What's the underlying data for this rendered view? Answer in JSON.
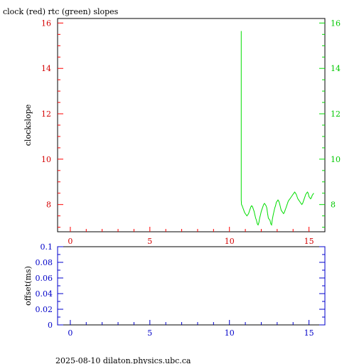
{
  "footer_text": "2025-08-10  dilaton.physics.ubc.ca",
  "colors": {
    "clock": "#ff0000",
    "rtc": "#00dd00",
    "offset_axis": "#0000cc",
    "frame": "#000000"
  },
  "chart_data": [
    {
      "type": "line",
      "title": "clock (red) rtc (green) slopes",
      "ylabel": "clockslope",
      "xlim": [
        -0.8,
        16.0
      ],
      "ylim": [
        6.8,
        16.2
      ],
      "x_ticks": [
        0,
        5,
        10,
        15
      ],
      "x_minor_ticks": [
        1,
        2,
        3,
        4,
        6,
        7,
        8,
        9,
        11,
        12,
        13,
        14
      ],
      "y_ticks_left": [
        8,
        10,
        12,
        14,
        16
      ],
      "y_ticks_right": [
        8,
        10,
        12,
        14,
        16
      ],
      "grid": false,
      "series": [
        {
          "x": [
            10.74,
            10.74,
            10.76,
            10.8,
            10.85,
            10.9,
            10.95,
            11.0,
            11.05,
            11.1,
            11.15,
            11.2,
            11.25,
            11.3,
            11.35,
            11.4,
            11.45,
            11.5,
            11.55,
            11.6,
            11.65,
            11.7,
            11.75,
            11.8,
            11.85,
            11.9,
            11.95,
            12.0,
            12.05,
            12.1,
            12.15,
            12.2,
            12.25,
            12.3,
            12.35,
            12.4,
            12.45,
            12.5,
            12.55,
            12.6,
            12.65,
            12.7,
            12.75,
            12.8,
            12.85,
            12.9,
            12.95,
            13.0,
            13.05,
            13.1,
            13.15,
            13.2,
            13.25,
            13.3,
            13.35,
            13.4,
            13.45,
            13.5,
            13.55,
            13.6,
            13.65,
            13.7,
            13.75,
            13.8,
            13.85,
            13.9,
            13.95,
            14.0,
            14.05,
            14.1,
            14.15,
            14.2,
            14.25,
            14.3,
            14.35,
            14.4,
            14.45,
            14.5,
            14.55,
            14.6,
            14.65,
            14.7,
            14.75,
            14.8,
            14.85,
            14.9,
            14.95,
            15.0,
            15.05,
            15.1,
            15.15,
            15.2,
            15.25,
            15.3
          ],
          "values": [
            15.65,
            8.2,
            8.0,
            7.95,
            7.85,
            7.75,
            7.65,
            7.6,
            7.55,
            7.5,
            7.55,
            7.6,
            7.7,
            7.8,
            7.9,
            7.95,
            7.9,
            7.8,
            7.7,
            7.55,
            7.4,
            7.3,
            7.15,
            7.1,
            7.2,
            7.4,
            7.55,
            7.7,
            7.8,
            7.9,
            8.0,
            8.05,
            8.0,
            7.95,
            7.85,
            7.6,
            7.4,
            7.35,
            7.3,
            7.15,
            7.1,
            7.35,
            7.55,
            7.7,
            7.85,
            7.95,
            8.1,
            8.15,
            8.2,
            8.15,
            8.05,
            7.9,
            7.75,
            7.7,
            7.65,
            7.6,
            7.65,
            7.75,
            7.85,
            7.95,
            8.05,
            8.15,
            8.2,
            8.25,
            8.3,
            8.35,
            8.4,
            8.45,
            8.5,
            8.55,
            8.5,
            8.45,
            8.35,
            8.25,
            8.2,
            8.15,
            8.1,
            8.05,
            8.0,
            8.05,
            8.15,
            8.25,
            8.35,
            8.45,
            8.5,
            8.55,
            8.5,
            8.35,
            8.3,
            8.25,
            8.3,
            8.4,
            8.45,
            8.5
          ]
        }
      ]
    },
    {
      "type": "line",
      "ylabel": "offset(ms)",
      "xlim": [
        -0.8,
        16.0
      ],
      "ylim": [
        0,
        0.1
      ],
      "x_ticks": [
        0,
        5,
        10,
        15
      ],
      "x_minor_ticks": [
        1,
        2,
        3,
        4,
        6,
        7,
        8,
        9,
        11,
        12,
        13,
        14
      ],
      "y_ticks": [
        0,
        0.02,
        0.04,
        0.06,
        0.08,
        0.1
      ],
      "y_tick_labels": [
        "0",
        "0.02",
        "0.04",
        "0.06",
        "0.08",
        "0.1"
      ],
      "grid": false,
      "series": []
    }
  ]
}
